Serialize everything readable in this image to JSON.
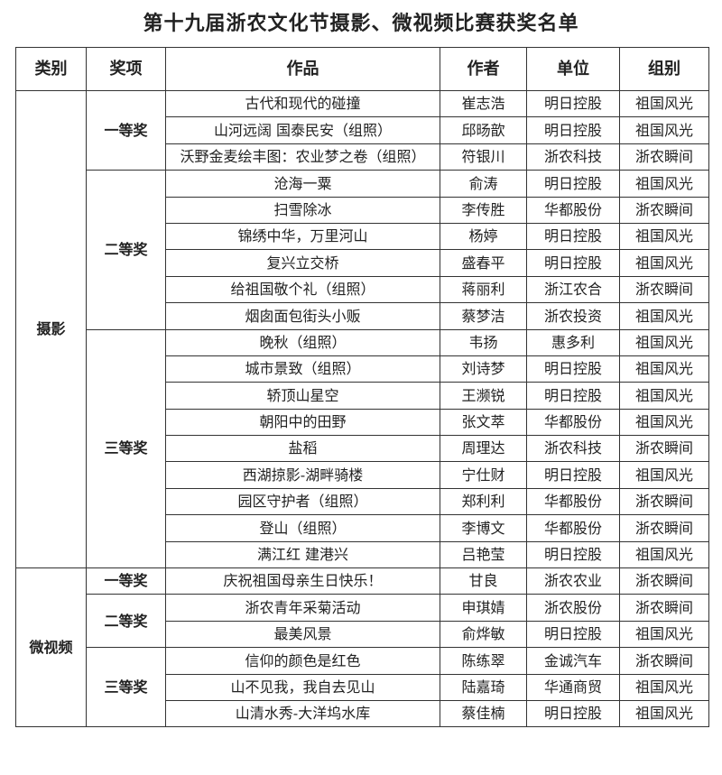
{
  "title": "第十九届浙农文化节摄影、微视频比赛获奖名单",
  "headers": [
    "类别",
    "奖项",
    "作品",
    "作者",
    "单位",
    "组别"
  ],
  "categories": [
    {
      "name": "摄影",
      "groups": [
        {
          "award": "一等奖",
          "rows": [
            [
              "古代和现代的碰撞",
              "崔志浩",
              "明日控股",
              "祖国风光"
            ],
            [
              "山河远阔 国泰民安（组照）",
              "邱旸歆",
              "明日控股",
              "祖国风光"
            ],
            [
              "沃野金麦绘丰图：农业梦之卷（组照）",
              "符银川",
              "浙农科技",
              "浙农瞬间"
            ]
          ]
        },
        {
          "award": "二等奖",
          "rows": [
            [
              "沧海一粟",
              "俞涛",
              "明日控股",
              "祖国风光"
            ],
            [
              "扫雪除冰",
              "李传胜",
              "华都股份",
              "浙农瞬间"
            ],
            [
              "锦绣中华，万里河山",
              "杨婷",
              "明日控股",
              "祖国风光"
            ],
            [
              "复兴立交桥",
              "盛春平",
              "明日控股",
              "祖国风光"
            ],
            [
              "给祖国敬个礼（组照）",
              "蒋丽利",
              "浙江农合",
              "浙农瞬间"
            ],
            [
              "烟囱面包街头小贩",
              "蔡梦洁",
              "浙农投资",
              "祖国风光"
            ]
          ]
        },
        {
          "award": "三等奖",
          "rows": [
            [
              "晚秋（组照）",
              "韦扬",
              "惠多利",
              "祖国风光"
            ],
            [
              "城市景致（组照）",
              "刘诗梦",
              "明日控股",
              "祖国风光"
            ],
            [
              "轿顶山星空",
              "王濒锐",
              "明日控股",
              "祖国风光"
            ],
            [
              "朝阳中的田野",
              "张文萃",
              "华都股份",
              "祖国风光"
            ],
            [
              "盐稻",
              "周理达",
              "浙农科技",
              "浙农瞬间"
            ],
            [
              "西湖掠影-湖畔骑楼",
              "宁仕财",
              "明日控股",
              "祖国风光"
            ],
            [
              "园区守护者（组照）",
              "郑利利",
              "华都股份",
              "浙农瞬间"
            ],
            [
              "登山（组照）",
              "李博文",
              "华都股份",
              "浙农瞬间"
            ],
            [
              "满江红 建港兴",
              "吕艳莹",
              "明日控股",
              "祖国风光"
            ]
          ]
        }
      ]
    },
    {
      "name": "微视频",
      "groups": [
        {
          "award": "一等奖",
          "rows": [
            [
              "庆祝祖国母亲生日快乐！",
              "甘良",
              "浙农农业",
              "浙农瞬间"
            ]
          ]
        },
        {
          "award": "二等奖",
          "rows": [
            [
              "浙农青年采菊活动",
              "申琪婧",
              "浙农股份",
              "浙农瞬间"
            ],
            [
              "最美风景",
              "俞烨敏",
              "明日控股",
              "祖国风光"
            ]
          ]
        },
        {
          "award": "三等奖",
          "rows": [
            [
              "信仰的颜色是红色",
              "陈练翠",
              "金诚汽车",
              "浙农瞬间"
            ],
            [
              "山不见我，我自去见山",
              "陆嘉琦",
              "华通商贸",
              "祖国风光"
            ],
            [
              "山清水秀-大洋坞水库",
              "蔡佳楠",
              "明日控股",
              "祖国风光"
            ]
          ]
        }
      ]
    }
  ]
}
